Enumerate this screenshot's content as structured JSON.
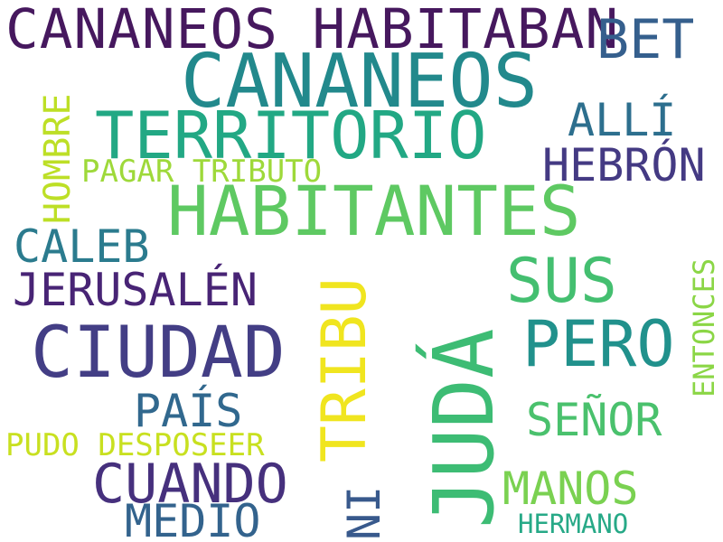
{
  "words": {
    "w1": {
      "text": "CANANEOS HABITABAN",
      "color": "#46185e"
    },
    "w2": {
      "text": "BET",
      "color": "#355f8d"
    },
    "w3": {
      "text": "CANANEOS",
      "color": "#22898c"
    },
    "w4": {
      "text": "TERRITORIO",
      "color": "#22a884"
    },
    "w5": {
      "text": "ALLÍ",
      "color": "#2d6f8e"
    },
    "w6": {
      "text": "HEBRÓN",
      "color": "#443a83"
    },
    "w7": {
      "text": "PAGAR TRIBUTO",
      "color": "#9ed93a"
    },
    "w8": {
      "text": "HABITANTES",
      "color": "#5ec962"
    },
    "w9": {
      "text": "CALEB",
      "color": "#2b7b8e"
    },
    "w10": {
      "text": "SUS",
      "color": "#44bf70"
    },
    "w11": {
      "text": "JERUSALÉN",
      "color": "#482475"
    },
    "w12": {
      "text": "CIUDAD",
      "color": "#433e85"
    },
    "w13": {
      "text": "PERO",
      "color": "#21918c"
    },
    "w14": {
      "text": "PAÍS",
      "color": "#31688e"
    },
    "w15": {
      "text": "SEÑOR",
      "color": "#4ac16d"
    },
    "w16": {
      "text": "PUDO DESPOSEER",
      "color": "#c8e020"
    },
    "w17": {
      "text": "CUANDO",
      "color": "#46307d"
    },
    "w18": {
      "text": "MANOS",
      "color": "#7ad151"
    },
    "w19": {
      "text": "MEDIO",
      "color": "#33638d"
    },
    "w20": {
      "text": "HERMANO",
      "color": "#27a987"
    },
    "v1": {
      "text": "HOMBRE",
      "color": "#bddf26"
    },
    "v2": {
      "text": "TRIBU",
      "color": "#f0e51f"
    },
    "v3": {
      "text": "JUDÁ",
      "color": "#3dbc74"
    },
    "v4": {
      "text": "NI",
      "color": "#38598c"
    },
    "v5": {
      "text": "ENTONCES",
      "color": "#8bd646"
    }
  }
}
